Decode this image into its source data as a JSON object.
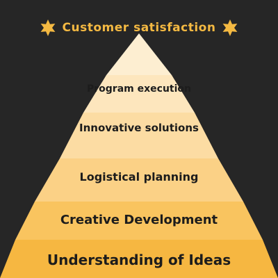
{
  "title": "Customer satisfaction",
  "colors": {
    "background": "#262626",
    "accent": "#f4b942"
  },
  "tiers": [
    {
      "label": "Program execution",
      "color": "#fde6bd"
    },
    {
      "label": "Innovative solutions",
      "color": "#fcdca3"
    },
    {
      "label": "Logistical planning",
      "color": "#fbd186"
    },
    {
      "label": "Creative Development",
      "color": "#f9c45f"
    },
    {
      "label": "Understanding of Ideas",
      "color": "#f6b741"
    }
  ],
  "icons": {
    "left": "star-icon",
    "right": "star-icon"
  }
}
